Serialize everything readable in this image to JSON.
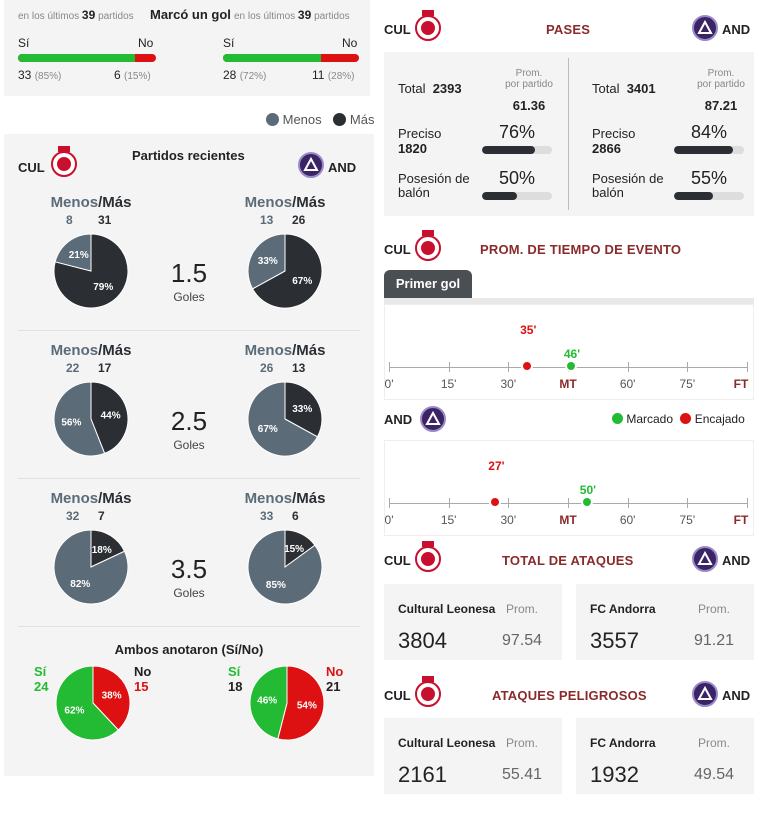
{
  "top_stats": {
    "left": {
      "prefix": "en los últimos",
      "count": "39",
      "suffix": "partidos"
    },
    "center_title": "Marcó un gol",
    "right": {
      "prefix": "en los últimos",
      "count": "39",
      "suffix": "partidos"
    },
    "cul": {
      "yes_label": "Sí",
      "no_label": "No",
      "yes": "33",
      "yes_pct": "(85%)",
      "no": "6",
      "no_pct": "(15%)",
      "yes_frac": 0.85
    },
    "and": {
      "yes_label": "Sí",
      "no_label": "No",
      "yes": "28",
      "yes_pct": "(72%)",
      "no": "11",
      "no_pct": "(28%)",
      "yes_frac": 0.72
    }
  },
  "legend": {
    "less": "Menos",
    "more": "Más"
  },
  "recent": {
    "title": "Partidos recientes",
    "home_code": "CUL",
    "away_code": "AND",
    "head_less": "Menos",
    "head_sep": "/",
    "head_more": "Más",
    "rows": [
      {
        "goals": "1.5",
        "goals_label": "Goles",
        "home": {
          "less": "8",
          "more": "31",
          "less_pct": "21%",
          "more_pct": "79%",
          "less_frac": 0.21
        },
        "away": {
          "less": "13",
          "more": "26",
          "less_pct": "33%",
          "more_pct": "67%",
          "less_frac": 0.33
        }
      },
      {
        "goals": "2.5",
        "goals_label": "Goles",
        "home": {
          "less": "22",
          "more": "17",
          "less_pct": "56%",
          "more_pct": "44%",
          "less_frac": 0.56
        },
        "away": {
          "less": "26",
          "more": "13",
          "less_pct": "67%",
          "more_pct": "33%",
          "less_frac": 0.67
        }
      },
      {
        "goals": "3.5",
        "goals_label": "Goles",
        "home": {
          "less": "32",
          "more": "7",
          "less_pct": "82%",
          "more_pct": "18%",
          "less_frac": 0.82
        },
        "away": {
          "less": "33",
          "more": "6",
          "less_pct": "85%",
          "more_pct": "15%",
          "less_frac": 0.85
        }
      }
    ]
  },
  "btts": {
    "title": "Ambos anotaron (Sí/No)",
    "home": {
      "yes_label": "Sí",
      "yes": "24",
      "no_label": "No",
      "no": "15",
      "yes_pct": "62%",
      "no_pct": "38%",
      "yes_frac": 0.62
    },
    "away": {
      "yes_label": "Sí",
      "yes": "18",
      "no_label": "No",
      "no": "21",
      "yes_pct": "46%",
      "no_pct": "54%",
      "yes_frac": 0.46
    }
  },
  "passes": {
    "title": "PASES",
    "home_code": "CUL",
    "away_code": "AND",
    "home": {
      "total_label": "Total",
      "total": "2393",
      "prom_label1": "Prom.",
      "prom_label2": "por partido",
      "prom": "61.36",
      "precise_label": "Preciso",
      "precise": "1820",
      "precise_pct": "76%",
      "precise_frac": 0.76,
      "poss_label1": "Posesión de",
      "poss_label2": "balón",
      "poss_pct": "50%",
      "poss_frac": 0.5
    },
    "away": {
      "total_label": "Total",
      "total": "3401",
      "prom_label1": "Prom.",
      "prom_label2": "por partido",
      "prom": "87.21",
      "precise_label": "Preciso",
      "precise": "2866",
      "precise_pct": "84%",
      "precise_frac": 0.84,
      "poss_label1": "Posesión de",
      "poss_label2": "balón",
      "poss_pct": "55%",
      "poss_frac": 0.55
    }
  },
  "event_time": {
    "title": "PROM. DE TIEMPO DE EVENTO",
    "home_code": "CUL",
    "away_code": "AND",
    "tab": "Primer gol",
    "axis": [
      "0'",
      "15'",
      "30'",
      "MT",
      "60'",
      "75'",
      "FT"
    ],
    "legend_scored": "Marcado",
    "legend_conceded": "Encajado",
    "color_scored": "#22bb33",
    "color_conceded": "#dd1111",
    "home": {
      "conceded_label": "35'",
      "conceded_min": 35,
      "scored_label": "46'",
      "scored_min": 46
    },
    "away": {
      "conceded_label": "27'",
      "conceded_min": 27,
      "scored_label": "50'",
      "scored_min": 50
    }
  },
  "attacks": {
    "title": "TOTAL DE ATAQUES",
    "home_code": "CUL",
    "away_code": "AND",
    "home": {
      "name": "Cultural Leonesa",
      "prom_label": "Prom.",
      "value": "3804",
      "avg": "97.54"
    },
    "away": {
      "name": "FC Andorra",
      "prom_label": "Prom.",
      "value": "3557",
      "avg": "91.21"
    }
  },
  "dangerous": {
    "title": "ATAQUES PELIGROSOS",
    "home_code": "CUL",
    "away_code": "AND",
    "home": {
      "name": "Cultural Leonesa",
      "prom_label": "Prom.",
      "value": "2161",
      "avg": "55.41"
    },
    "away": {
      "name": "FC Andorra",
      "prom_label": "Prom.",
      "value": "1932",
      "avg": "49.54"
    }
  },
  "colors": {
    "less": "#5b6b78",
    "more": "#2b2f33",
    "green": "#22bb33",
    "red": "#dd1111",
    "accent": "#8a2a2a"
  }
}
